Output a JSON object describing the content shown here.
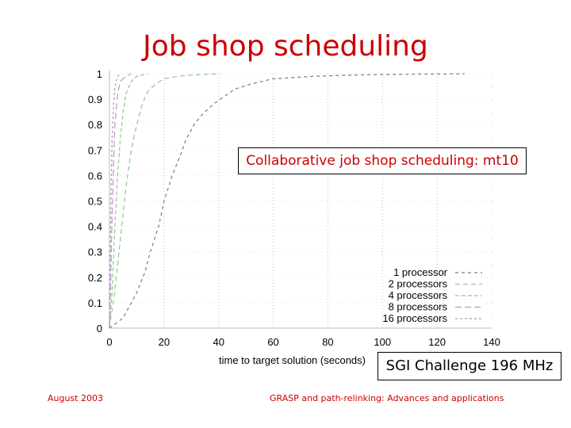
{
  "slide": {
    "title": "Job shop scheduling",
    "footer_date": "August 2003",
    "footer_title": "GRASP and path-relinking: Advances and applications"
  },
  "chart_data": {
    "type": "line",
    "title": "Collaborative job shop scheduling: mt10",
    "machine_label": "SGI Challenge 196 MHz",
    "xlabel": "time to target solution (seconds)",
    "ylabel": "",
    "xlim": [
      0,
      140
    ],
    "ylim": [
      0,
      1
    ],
    "x_ticks": [
      "0",
      "20",
      "40",
      "60",
      "80",
      "100",
      "120",
      "140"
    ],
    "y_ticks": [
      "0",
      "0.1",
      "0.2",
      "0.3",
      "0.4",
      "0.5",
      "0.6",
      "0.7",
      "0.8",
      "0.9",
      "1"
    ],
    "grid": true,
    "legend_position": "bottom-right",
    "series": [
      {
        "name": "1 processor",
        "color": "#7a7a7a",
        "x": [
          0,
          5,
          10,
          13,
          15,
          18,
          20,
          23,
          26,
          28,
          31,
          34,
          38,
          42,
          46,
          52,
          60,
          75,
          90,
          110,
          130
        ],
        "y": [
          0,
          0.04,
          0.14,
          0.22,
          0.3,
          0.4,
          0.5,
          0.6,
          0.68,
          0.74,
          0.8,
          0.84,
          0.88,
          0.91,
          0.94,
          0.96,
          0.98,
          0.99,
          0.995,
          0.998,
          1.0
        ]
      },
      {
        "name": "2 processors",
        "color": "#8fc98f",
        "x": [
          0,
          2,
          4,
          6,
          8,
          10,
          12,
          14,
          17,
          20,
          25,
          30,
          40
        ],
        "y": [
          0,
          0.15,
          0.35,
          0.55,
          0.7,
          0.8,
          0.88,
          0.93,
          0.96,
          0.98,
          0.99,
          0.995,
          1.0
        ]
      },
      {
        "name": "4 processors",
        "color": "#8fc98f",
        "x": [
          0,
          1,
          2,
          3,
          4,
          5,
          6,
          8,
          10,
          14
        ],
        "y": [
          0,
          0.15,
          0.4,
          0.6,
          0.75,
          0.85,
          0.92,
          0.97,
          0.99,
          1.0
        ]
      },
      {
        "name": "8 processors",
        "color": "#c48fd0",
        "x": [
          0,
          0.5,
          1,
          1.5,
          2,
          3,
          4,
          6,
          8
        ],
        "y": [
          0,
          0.2,
          0.45,
          0.65,
          0.8,
          0.92,
          0.97,
          0.99,
          1.0
        ]
      },
      {
        "name": "16 processors",
        "color": "#a0a0a0",
        "x": [
          0,
          0.3,
          0.6,
          1,
          1.5,
          2,
          3,
          4
        ],
        "y": [
          0,
          0.3,
          0.55,
          0.75,
          0.88,
          0.95,
          0.99,
          1.0
        ]
      }
    ]
  }
}
